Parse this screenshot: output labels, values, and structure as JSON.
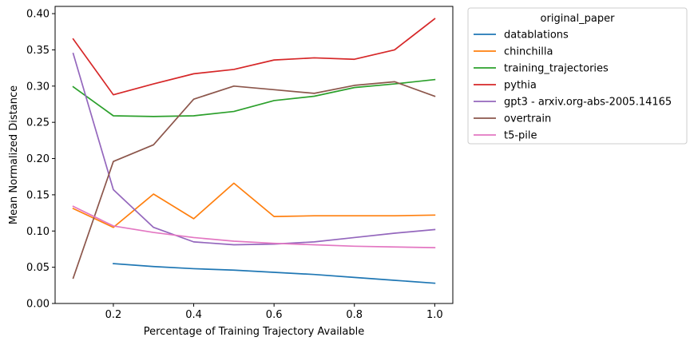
{
  "chart_data": {
    "type": "line",
    "title": "",
    "xlabel": "Percentage of Training Trajectory Available",
    "ylabel": "Mean Normalized Distance",
    "xlim": [
      0.055,
      1.045
    ],
    "ylim": [
      0.0,
      0.41
    ],
    "xticks": [
      "0.2",
      "0.4",
      "0.6",
      "0.8",
      "1.0"
    ],
    "xtick_values": [
      0.2,
      0.4,
      0.6,
      0.8,
      1.0
    ],
    "yticks": [
      "0.00",
      "0.05",
      "0.10",
      "0.15",
      "0.20",
      "0.25",
      "0.30",
      "0.35",
      "0.40"
    ],
    "ytick_values": [
      0.0,
      0.05,
      0.1,
      0.15,
      0.2,
      0.25,
      0.3,
      0.35,
      0.4
    ],
    "grid": false,
    "legend": {
      "title": "original_paper",
      "placement": "outside right"
    },
    "series": [
      {
        "name": "datablations",
        "color": "#1f77b4",
        "x": [
          0.2,
          0.3,
          0.4,
          0.5,
          0.6,
          0.7,
          0.8,
          0.9,
          1.0
        ],
        "y": [
          0.055,
          0.051,
          0.048,
          0.046,
          0.043,
          0.04,
          0.036,
          0.032,
          0.028
        ]
      },
      {
        "name": "chinchilla",
        "color": "#ff7f0e",
        "x": [
          0.1,
          0.2,
          0.3,
          0.4,
          0.5,
          0.6,
          0.7,
          0.8,
          0.9,
          1.0
        ],
        "y": [
          0.131,
          0.105,
          0.151,
          0.117,
          0.166,
          0.12,
          0.121,
          0.121,
          0.121,
          0.122
        ]
      },
      {
        "name": "training_trajectories",
        "color": "#2ca02c",
        "x": [
          0.1,
          0.2,
          0.3,
          0.4,
          0.5,
          0.6,
          0.7,
          0.8,
          0.9,
          1.0
        ],
        "y": [
          0.299,
          0.259,
          0.258,
          0.259,
          0.265,
          0.28,
          0.286,
          0.298,
          0.303,
          0.309
        ]
      },
      {
        "name": "pythia",
        "color": "#d62728",
        "x": [
          0.1,
          0.2,
          0.3,
          0.4,
          0.5,
          0.6,
          0.7,
          0.8,
          0.9,
          1.0
        ],
        "y": [
          0.365,
          0.288,
          0.303,
          0.317,
          0.323,
          0.336,
          0.339,
          0.337,
          0.35,
          0.393
        ]
      },
      {
        "name": "gpt3 - arxiv.org-abs-2005.14165",
        "color": "#9467bd",
        "x": [
          0.1,
          0.2,
          0.3,
          0.4,
          0.5,
          0.6,
          0.7,
          0.8,
          0.9,
          1.0
        ],
        "y": [
          0.345,
          0.157,
          0.105,
          0.085,
          0.081,
          0.082,
          0.085,
          0.091,
          0.097,
          0.102
        ]
      },
      {
        "name": "overtrain",
        "color": "#8c564b",
        "x": [
          0.1,
          0.2,
          0.3,
          0.4,
          0.5,
          0.6,
          0.7,
          0.8,
          0.9,
          1.0
        ],
        "y": [
          0.035,
          0.196,
          0.219,
          0.282,
          0.3,
          0.295,
          0.29,
          0.301,
          0.306,
          0.286
        ]
      },
      {
        "name": "t5-pile",
        "color": "#e377c2",
        "x": [
          0.1,
          0.2,
          0.3,
          0.4,
          0.5,
          0.6,
          0.7,
          0.8,
          0.9,
          1.0
        ],
        "y": [
          0.134,
          0.107,
          0.098,
          0.091,
          0.086,
          0.083,
          0.081,
          0.079,
          0.078,
          0.077
        ]
      }
    ]
  }
}
